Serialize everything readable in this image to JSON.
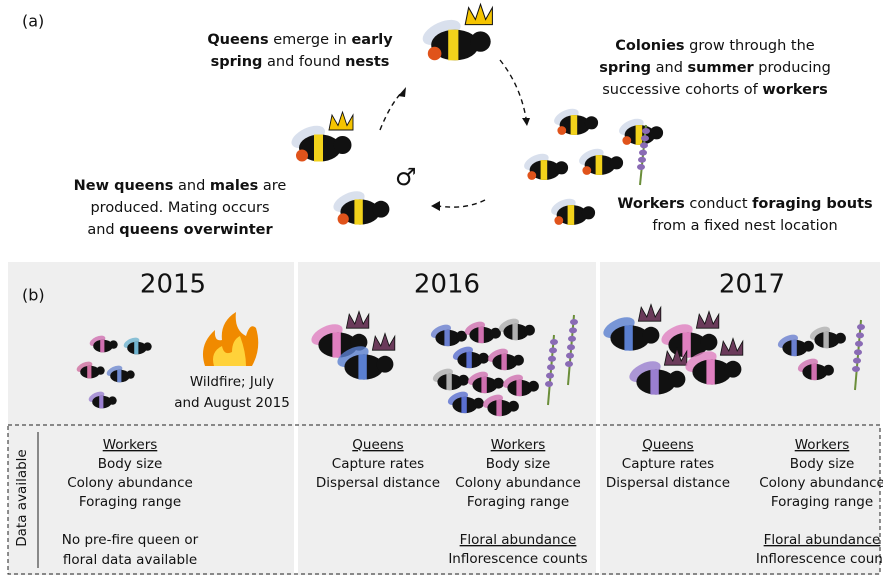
{
  "panel_a": {
    "label": "(a)",
    "male_symbol": "♂",
    "captions": [
      [
        [
          {
            "text": "Queens",
            "bold": true
          },
          {
            "text": " emerge in ",
            "bold": false
          },
          {
            "text": "early",
            "bold": true
          }
        ],
        [
          {
            "text": "spring",
            "bold": true
          },
          {
            "text": " and found ",
            "bold": false
          },
          {
            "text": "nests",
            "bold": true
          }
        ]
      ],
      [
        [
          {
            "text": "Colonies",
            "bold": true
          },
          {
            "text": " grow through the",
            "bold": false
          }
        ],
        [
          {
            "text": "spring",
            "bold": true
          },
          {
            "text": " and ",
            "bold": false
          },
          {
            "text": "summer",
            "bold": true
          },
          {
            "text": " producing",
            "bold": false
          }
        ],
        [
          {
            "text": "successive cohorts of ",
            "bold": false
          },
          {
            "text": "workers",
            "bold": true
          }
        ]
      ],
      [
        [
          {
            "text": "Workers",
            "bold": true
          },
          {
            "text": " conduct ",
            "bold": false
          },
          {
            "text": "foraging bouts",
            "bold": true
          }
        ],
        [
          {
            "text": "from a fixed nest location",
            "bold": false
          }
        ]
      ],
      [
        [
          {
            "text": "New queens",
            "bold": true
          },
          {
            "text": " and ",
            "bold": false
          },
          {
            "text": "males",
            "bold": true
          },
          {
            "text": " are",
            "bold": false
          }
        ],
        [
          {
            "text": "produced. Mating occurs",
            "bold": false
          }
        ],
        [
          {
            "text": "and ",
            "bold": false
          },
          {
            "text": "queens overwinter",
            "bold": true
          }
        ]
      ]
    ]
  },
  "panel_b": {
    "label": "(b)",
    "side_label": "Data available",
    "fire_label": [
      "Wildfire; July",
      "and August 2015"
    ],
    "years": [
      {
        "year": "2015",
        "groups": [
          {
            "heading": "Workers",
            "items": [
              "Body size",
              "Colony abundance",
              "Foraging range"
            ]
          }
        ],
        "note": [
          "No pre-fire queen or",
          "floral data available"
        ]
      },
      {
        "year": "2016",
        "groups": [
          {
            "heading": "Queens",
            "items": [
              "Capture rates",
              "Dispersal distance"
            ]
          },
          {
            "heading": "Workers",
            "items": [
              "Body size",
              "Colony abundance",
              "Foraging range"
            ]
          },
          {
            "heading": "Floral abundance",
            "items": [
              "Inflorescence counts"
            ]
          }
        ]
      },
      {
        "year": "2017",
        "groups": [
          {
            "heading": "Queens",
            "items": [
              "Capture rates",
              "Dispersal distance"
            ]
          },
          {
            "heading": "Workers",
            "items": [
              "Body size",
              "Colony abundance",
              "Foraging range"
            ]
          },
          {
            "heading": "Floral abundance",
            "items": [
              "Inflorescence count"
            ]
          }
        ]
      }
    ]
  }
}
